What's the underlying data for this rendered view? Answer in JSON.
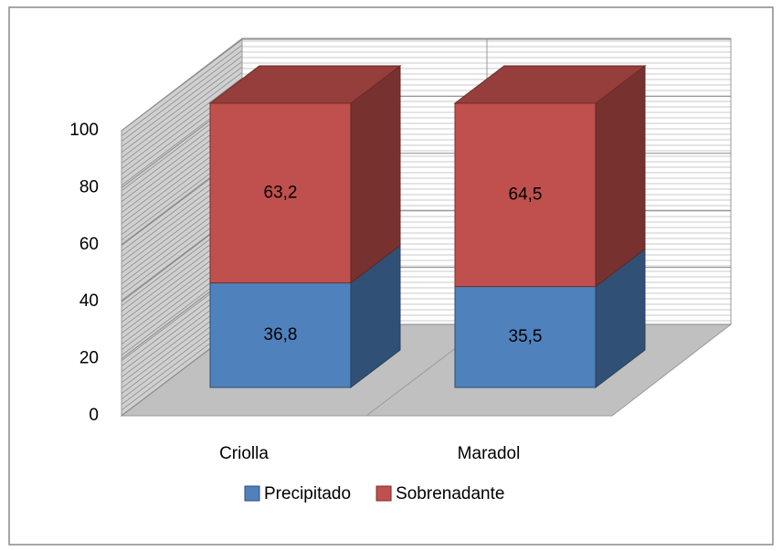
{
  "chart_data": {
    "type": "bar3d-stacked",
    "categories": [
      "Criolla",
      "Maradol"
    ],
    "series": [
      {
        "name": "Precipitado",
        "color": "#4f81bd",
        "values": [
          36.8,
          35.5
        ],
        "value_labels": [
          "36,8",
          "35,5"
        ]
      },
      {
        "name": "Sobrenadante",
        "color": "#c0504d",
        "values": [
          63.2,
          64.5
        ],
        "value_labels": [
          "63,2",
          "64,5"
        ]
      }
    ],
    "ylim": [
      0,
      100
    ],
    "yticks": [
      0,
      20,
      40,
      60,
      80,
      100
    ],
    "grid": true,
    "legend": "bottom"
  }
}
